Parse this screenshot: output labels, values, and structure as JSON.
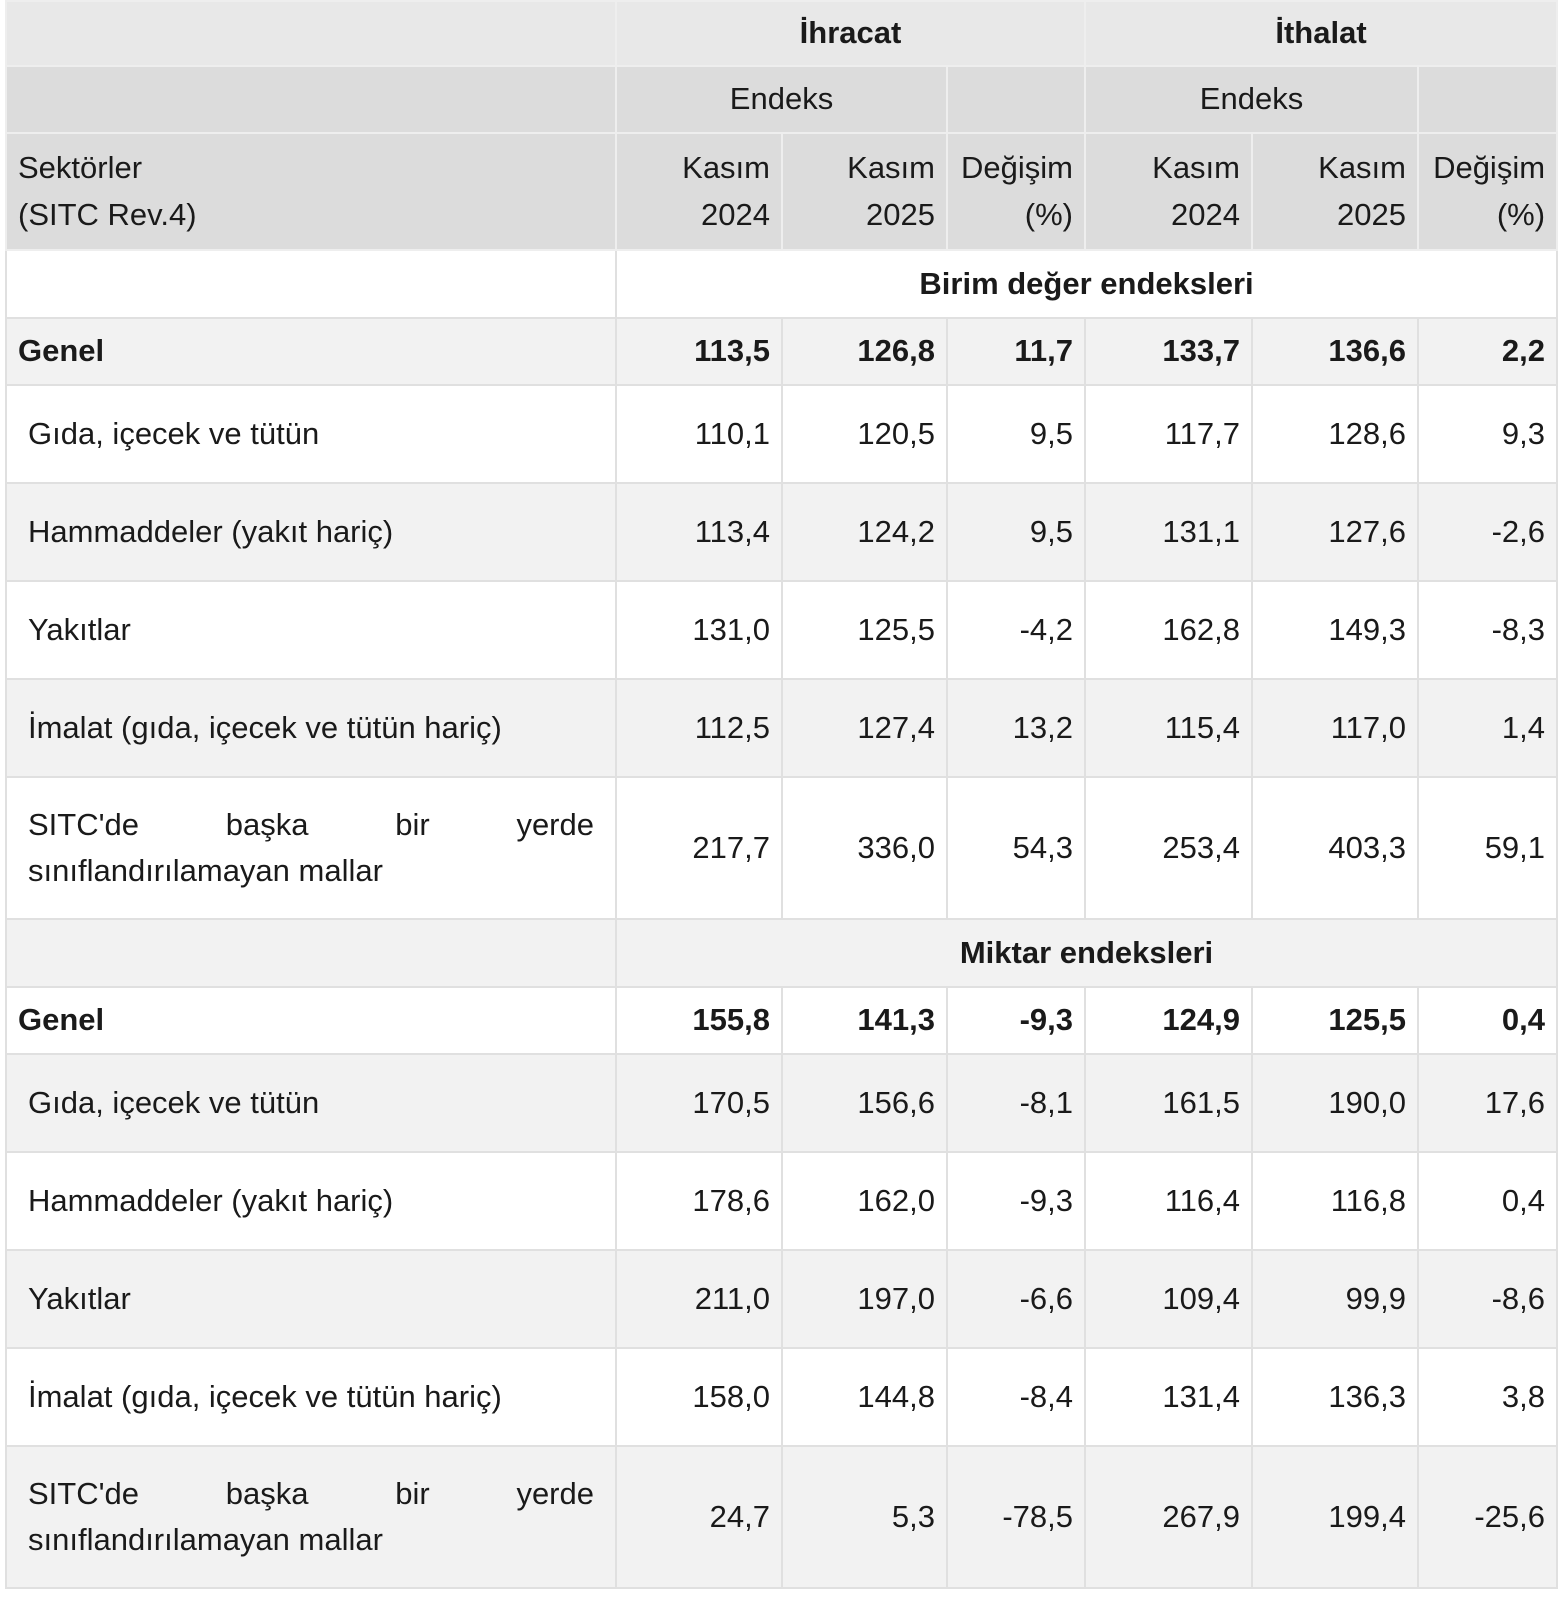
{
  "header": {
    "sector_label": [
      "Sektörler",
      "(SITC Rev.4)"
    ],
    "groups": [
      {
        "name": "İhracat",
        "subgroup": "Endeks",
        "columns": [
          [
            "Kasım",
            "2024"
          ],
          [
            "Kasım",
            "2025"
          ],
          [
            "Değişim",
            "(%)"
          ]
        ]
      },
      {
        "name": "İthalat",
        "subgroup": "Endeks",
        "columns": [
          [
            "Kasım",
            "2024"
          ],
          [
            "Kasım",
            "2025"
          ],
          [
            "Değişim",
            "(%)"
          ]
        ]
      }
    ]
  },
  "sections": [
    {
      "title": "Birim değer endeksleri",
      "rows": [
        {
          "label": "Genel",
          "values": [
            "113,5",
            "126,8",
            "11,7",
            "133,7",
            "136,6",
            "2,2"
          ]
        },
        {
          "label": "Gıda, içecek ve tütün",
          "values": [
            "110,1",
            "120,5",
            "9,5",
            "117,7",
            "128,6",
            "9,3"
          ]
        },
        {
          "label": "Hammaddeler (yakıt hariç)",
          "values": [
            "113,4",
            "124,2",
            "9,5",
            "131,1",
            "127,6",
            "-2,6"
          ]
        },
        {
          "label": "Yakıtlar",
          "values": [
            "131,0",
            "125,5",
            "-4,2",
            "162,8",
            "149,3",
            "-8,3"
          ]
        },
        {
          "label": "İmalat (gıda, içecek ve tütün hariç)",
          "values": [
            "112,5",
            "127,4",
            "13,2",
            "115,4",
            "117,0",
            "1,4"
          ]
        },
        {
          "label": "SITC'de başka bir yerde sınıflandırılamayan mallar",
          "values": [
            "217,7",
            "336,0",
            "54,3",
            "253,4",
            "403,3",
            "59,1"
          ]
        }
      ]
    },
    {
      "title": "Miktar endeksleri",
      "rows": [
        {
          "label": "Genel",
          "values": [
            "155,8",
            "141,3",
            "-9,3",
            "124,9",
            "125,5",
            "0,4"
          ]
        },
        {
          "label": "Gıda, içecek ve tütün",
          "values": [
            "170,5",
            "156,6",
            "-8,1",
            "161,5",
            "190,0",
            "17,6"
          ]
        },
        {
          "label": "Hammaddeler (yakıt hariç)",
          "values": [
            "178,6",
            "162,0",
            "-9,3",
            "116,4",
            "116,8",
            "0,4"
          ]
        },
        {
          "label": "Yakıtlar",
          "values": [
            "211,0",
            "197,0",
            "-6,6",
            "109,4",
            "99,9",
            "-8,6"
          ]
        },
        {
          "label": "İmalat (gıda, içecek ve tütün hariç)",
          "values": [
            "158,0",
            "144,8",
            "-8,4",
            "131,4",
            "136,3",
            "3,8"
          ]
        },
        {
          "label": "SITC'de başka bir yerde sınıflandırılamayan mallar",
          "values": [
            "24,7",
            "5,3",
            "-78,5",
            "267,9",
            "199,4",
            "-25,6"
          ]
        }
      ]
    }
  ]
}
